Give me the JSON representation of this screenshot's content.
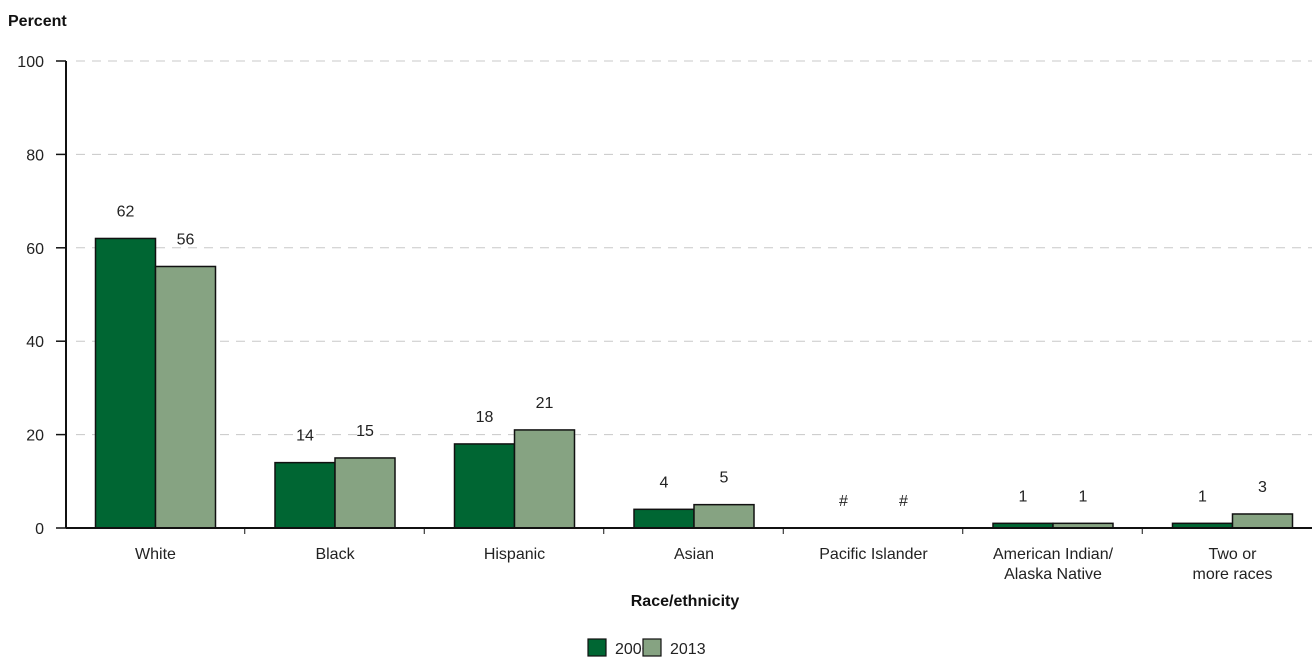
{
  "chart_data": {
    "type": "bar",
    "ylabel": "Percent",
    "xlabel": "Race/ethnicity",
    "ylim": [
      0,
      100
    ],
    "yticks": [
      0,
      20,
      40,
      60,
      80,
      100
    ],
    "grid": true,
    "legend_position": "bottom-center",
    "categories": [
      [
        "White"
      ],
      [
        "Black"
      ],
      [
        "Hispanic"
      ],
      [
        "Asian"
      ],
      [
        "Pacific Islander"
      ],
      [
        "American Indian/",
        "Alaska Native"
      ],
      [
        "Two or",
        "more races"
      ]
    ],
    "series": [
      {
        "name": "2000",
        "color": "#006633",
        "values": [
          62,
          14,
          18,
          4,
          0,
          1,
          1
        ],
        "labels": [
          "62",
          "14",
          "18",
          "4",
          "#",
          "1",
          "1"
        ]
      },
      {
        "name": "2013",
        "color": "#86a382",
        "values": [
          56,
          15,
          21,
          5,
          0,
          1,
          3
        ],
        "labels": [
          "56",
          "15",
          "21",
          "5",
          "#",
          "1",
          "3"
        ]
      }
    ]
  }
}
